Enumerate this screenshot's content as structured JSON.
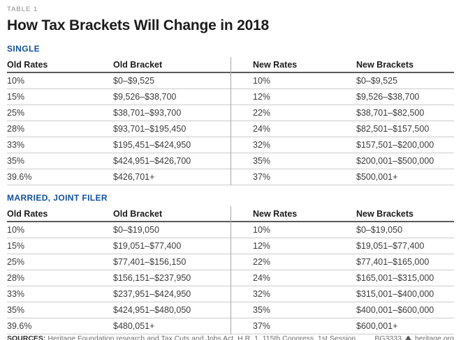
{
  "table_label": "TABLE 1",
  "title": "How Tax Brackets Will Change in 2018",
  "chart_data": {
    "type": "table",
    "title": "How Tax Brackets Will Change in 2018",
    "columns": [
      "Old Rates",
      "Old Bracket",
      "New Rates",
      "New Brackets"
    ],
    "sections": [
      {
        "label": "SINGLE",
        "rows": [
          {
            "old_rate": "10%",
            "old_bracket": "$0–$9,525",
            "new_rate": "10%",
            "new_bracket": "$0–$9,525"
          },
          {
            "old_rate": "15%",
            "old_bracket": "$9,526–$38,700",
            "new_rate": "12%",
            "new_bracket": "$9,526–$38,700"
          },
          {
            "old_rate": "25%",
            "old_bracket": "$38,701–$93,700",
            "new_rate": "22%",
            "new_bracket": "$38,701–$82,500"
          },
          {
            "old_rate": "28%",
            "old_bracket": "$93,701–$195,450",
            "new_rate": "24%",
            "new_bracket": "$82,501–$157,500"
          },
          {
            "old_rate": "33%",
            "old_bracket": "$195,451–$424,950",
            "new_rate": "32%",
            "new_bracket": "$157,501–$200,000"
          },
          {
            "old_rate": "35%",
            "old_bracket": "$424,951–$426,700",
            "new_rate": "35%",
            "new_bracket": "$200,001–$500,000"
          },
          {
            "old_rate": "39.6%",
            "old_bracket": "$426,701+",
            "new_rate": "37%",
            "new_bracket": "$500,001+"
          }
        ]
      },
      {
        "label": "MARRIED, JOINT FILER",
        "rows": [
          {
            "old_rate": "10%",
            "old_bracket": "$0–$19,050",
            "new_rate": "10%",
            "new_bracket": "$0–$19,050"
          },
          {
            "old_rate": "15%",
            "old_bracket": "$19,051–$77,400",
            "new_rate": "12%",
            "new_bracket": "$19,051–$77,400"
          },
          {
            "old_rate": "25%",
            "old_bracket": "$77,401–$156,150",
            "new_rate": "22%",
            "new_bracket": "$77,401–$165,000"
          },
          {
            "old_rate": "28%",
            "old_bracket": "$156,151–$237,950",
            "new_rate": "24%",
            "new_bracket": "$165,001–$315,000"
          },
          {
            "old_rate": "33%",
            "old_bracket": "$237,951–$424,950",
            "new_rate": "32%",
            "new_bracket": "$315,001–$400,000"
          },
          {
            "old_rate": "35%",
            "old_bracket": "$424,951–$480,050",
            "new_rate": "35%",
            "new_bracket": "$400,001–$600,000"
          },
          {
            "old_rate": "39.6%",
            "old_bracket": "$480,051+",
            "new_rate": "37%",
            "new_bracket": "$600,001+"
          }
        ]
      }
    ]
  },
  "footer": {
    "sources_label": "SOURCES:",
    "sources_text": "Heritage Foundation research and Tax Cuts and Jobs Act, H.R. 1, 115th Congress, 1st Session.",
    "code": "BG3333",
    "site": "heritage.org",
    "logo_icon": "heritage-tower-icon"
  },
  "colors": {
    "accent_blue": "#11519e",
    "title_text": "#1c1c1c",
    "body_text": "#3c3c3c",
    "kicker_gray": "#8a8a8a",
    "header_rule": "#58595b",
    "row_rule": "#cccccc",
    "divider": "#a5a5a5",
    "footer_gray": "#6e6e6e"
  }
}
